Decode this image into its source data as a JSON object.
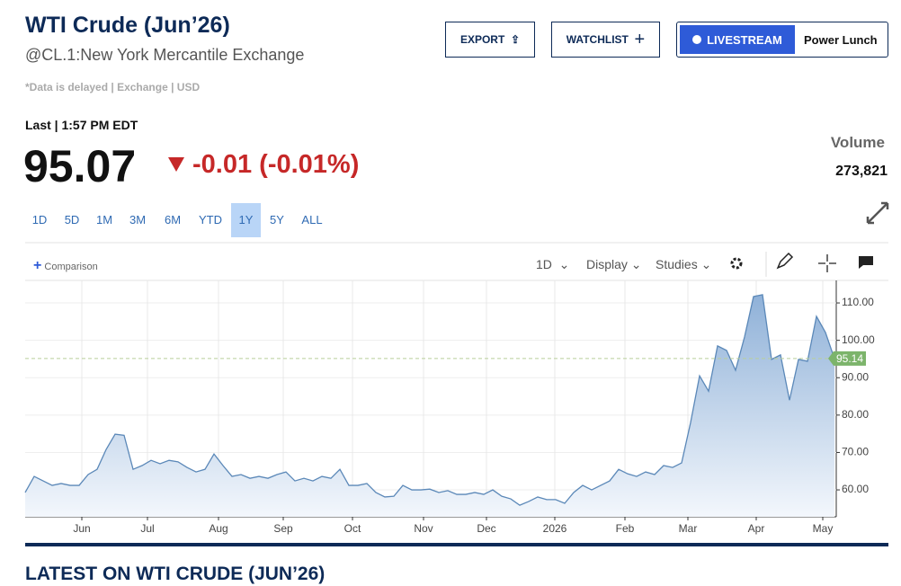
{
  "header": {
    "title": "WTI Crude (Jun’26)",
    "subtitle": "@CL.1:New York Mercantile Exchange",
    "disclaimer": "*Data is delayed | Exchange | USD",
    "buttons": {
      "export": "EXPORT",
      "watchlist": "WATCHLIST",
      "livestream": "LIVESTREAM",
      "show": "Power Lunch"
    }
  },
  "quote": {
    "last_label": "Last | 1:57 PM EDT",
    "price": "95.07",
    "change": "-0.01 (-0.01%)",
    "volume_label": "Volume",
    "volume": "273,821"
  },
  "ranges": [
    "1D",
    "5D",
    "1M",
    "3M",
    "6M",
    "YTD",
    "1Y",
    "5Y",
    "ALL"
  ],
  "toolbar": {
    "comparison": "Comparison",
    "interval": "1D",
    "display": "Display",
    "studies": "Studies"
  },
  "chart_data": {
    "type": "area",
    "color": "#5b88b8",
    "grid": true,
    "values": [
      59.3,
      63.6,
      62.4,
      61.2,
      61.7,
      61.2,
      61.2,
      64.1,
      65.5,
      70.8,
      74.9,
      74.6,
      65.5,
      66.5,
      67.9,
      67.0,
      67.9,
      67.5,
      66.0,
      64.8,
      65.5,
      69.6,
      66.5,
      63.6,
      64.1,
      63.1,
      63.6,
      63.1,
      64.1,
      64.8,
      62.4,
      63.1,
      62.4,
      63.6,
      63.1,
      65.5,
      61.2,
      61.2,
      61.7,
      59.3,
      58.1,
      58.3,
      61.2,
      60.0,
      60.0,
      60.2,
      59.3,
      59.8,
      58.8,
      58.8,
      59.3,
      58.8,
      60.0,
      58.3,
      57.6,
      55.9,
      56.9,
      58.1,
      57.4,
      57.4,
      56.4,
      59.3,
      61.2,
      60.0,
      61.2,
      62.4,
      65.5,
      64.3,
      63.6,
      64.8,
      64.1,
      66.5,
      66.0,
      67.2,
      78.0,
      90.5,
      86.4,
      98.5,
      97.3,
      92.0,
      100.9,
      111.7,
      112.2,
      94.9,
      96.1,
      84.0,
      94.9,
      94.4,
      106.4,
      102.1,
      95.1
    ],
    "ylim": [
      52.8,
      115.3
    ],
    "yticks": [
      {
        "value": 60,
        "label": "60.00"
      },
      {
        "value": 70,
        "label": "70.00"
      },
      {
        "value": 80,
        "label": "80.00"
      },
      {
        "value": 90,
        "label": "90.00"
      },
      {
        "value": 100,
        "label": "100.00"
      },
      {
        "value": 110,
        "label": "110.00"
      }
    ],
    "xticks": [
      {
        "value": 6.3,
        "label": "Jun"
      },
      {
        "value": 13.6,
        "label": "Jul"
      },
      {
        "value": 21.5,
        "label": "Aug"
      },
      {
        "value": 28.7,
        "label": "Sep"
      },
      {
        "value": 36.4,
        "label": "Oct"
      },
      {
        "value": 44.3,
        "label": "Nov"
      },
      {
        "value": 51.3,
        "label": "Dec"
      },
      {
        "value": 58.9,
        "label": "2026"
      },
      {
        "value": 66.7,
        "label": "Feb"
      },
      {
        "value": 73.7,
        "label": "Mar"
      },
      {
        "value": 81.3,
        "label": "Apr"
      },
      {
        "value": 88.7,
        "label": "May"
      }
    ],
    "last_value": 95.14,
    "last_color": "#7cb46b"
  },
  "section": {
    "heading": "LATEST ON WTI CRUDE (JUN’26)"
  }
}
